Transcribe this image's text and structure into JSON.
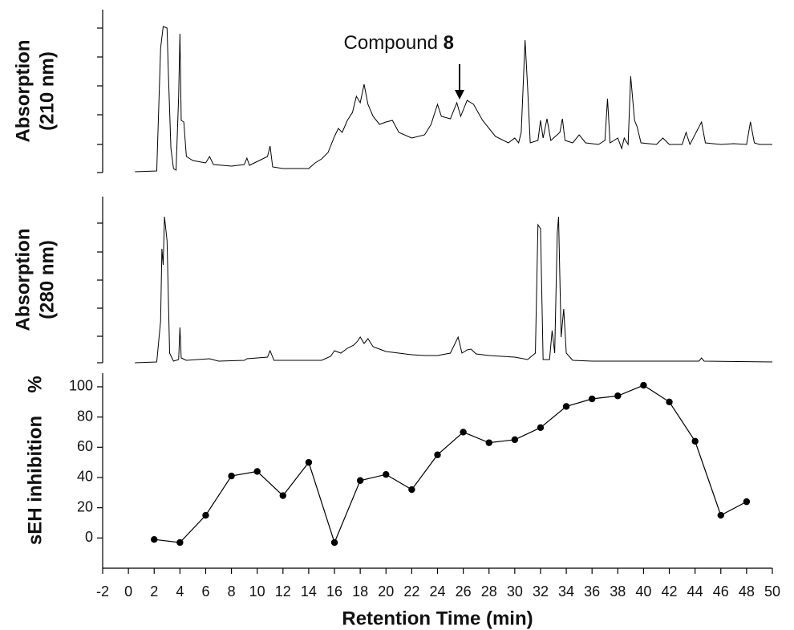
{
  "chart_data": [
    {
      "type": "line",
      "ylabel": [
        "Absorption",
        "(210 nm)"
      ],
      "color": "#000000",
      "xlim": [
        -2,
        50
      ],
      "ylim": [
        0,
        203
      ],
      "yticks": [
        0,
        35,
        72,
        108,
        144,
        180
      ],
      "annotation": {
        "text": "Compound",
        "bold": "8"
      },
      "x": [
        0.5,
        2.2,
        2.5,
        2.7,
        3.0,
        3.1,
        3.3,
        3.5,
        3.7,
        3.9,
        4.0,
        4.1,
        4.3,
        4.5,
        5,
        6,
        6.3,
        6.6,
        8,
        9,
        9.2,
        9.4,
        10.8,
        11,
        11.2,
        12,
        14,
        14.5,
        15,
        15.5,
        16,
        16.3,
        16.6,
        17,
        17.4,
        17.7,
        18,
        18.3,
        18.6,
        19,
        19.5,
        20,
        20.5,
        21,
        22,
        23,
        23.5,
        24,
        24.3,
        25,
        25.5,
        25.8,
        26.3,
        26.8,
        27.5,
        28.5,
        29.5,
        30,
        30.3,
        30.5,
        30.8,
        31,
        31.2,
        31.8,
        32,
        32.2,
        32.5,
        32.8,
        33.5,
        33.7,
        33.9,
        34.5,
        35,
        35.5,
        36.5,
        37,
        37.2,
        37.4,
        38,
        38.3,
        38.5,
        38.8,
        39,
        39.3,
        39.5,
        39.8,
        41,
        41.5,
        42,
        43,
        43.3,
        43.6,
        44.5,
        44.8,
        46,
        47,
        48,
        48.3,
        48.6,
        49,
        50
      ],
      "values": [
        1,
        2,
        155,
        182,
        180,
        125,
        30,
        5,
        3,
        95,
        173,
        65,
        63,
        20,
        15,
        12,
        20,
        10,
        8,
        10,
        18,
        9,
        20,
        33,
        7,
        5,
        5,
        12,
        17,
        25,
        45,
        55,
        50,
        65,
        75,
        95,
        87,
        110,
        85,
        70,
        60,
        63,
        65,
        50,
        43,
        47,
        60,
        85,
        70,
        67,
        87,
        70,
        90,
        85,
        65,
        45,
        37,
        43,
        37,
        50,
        165,
        105,
        37,
        40,
        65,
        43,
        67,
        40,
        50,
        67,
        40,
        37,
        47,
        37,
        35,
        40,
        92,
        37,
        43,
        30,
        43,
        35,
        120,
        65,
        57,
        37,
        35,
        43,
        35,
        35,
        50,
        35,
        63,
        37,
        35,
        36,
        35,
        63,
        37,
        35,
        35
      ]
    },
    {
      "type": "line",
      "ylabel": [
        "Absorption",
        "(280 nm)"
      ],
      "color": "#000000",
      "xlim": [
        -2,
        50
      ],
      "ylim": [
        0,
        207
      ],
      "yticks": [
        0,
        33,
        68,
        103,
        138,
        174
      ],
      "x": [
        0.5,
        2.2,
        2.5,
        2.6,
        2.7,
        2.8,
        3.0,
        3.2,
        3.5,
        3.9,
        4.0,
        4.1,
        4.5,
        6.3,
        7,
        9,
        9.2,
        10.8,
        11,
        11.3,
        15,
        15.7,
        16,
        16.5,
        17,
        17.5,
        17.8,
        18,
        18.3,
        18.6,
        19,
        19.5,
        20,
        21,
        22,
        23,
        24,
        25,
        25.6,
        25.9,
        26.3,
        26.6,
        27,
        28,
        30,
        31,
        31.6,
        31.8,
        32.0,
        32.2,
        32.7,
        32.9,
        33.1,
        33.3,
        33.4,
        33.6,
        33.8,
        34,
        34.5,
        36,
        44.3,
        44.5,
        44.7,
        50
      ],
      "values": [
        0,
        1,
        52,
        142,
        122,
        182,
        152,
        12,
        2,
        4,
        44,
        6,
        3,
        5,
        2,
        3,
        5,
        7,
        15,
        3,
        3,
        8,
        15,
        12,
        18,
        22,
        27,
        32,
        24,
        30,
        20,
        17,
        14,
        12,
        10,
        9,
        9,
        12,
        32,
        12,
        16,
        17,
        11,
        9,
        7,
        4,
        12,
        172,
        167,
        4,
        4,
        40,
        12,
        162,
        182,
        32,
        67,
        12,
        3,
        2,
        2,
        6,
        2,
        1
      ]
    },
    {
      "type": "line",
      "ylabel": [
        "sEH inhibition"
      ],
      "yunit": "%",
      "xlabel": "Retention Time (min)",
      "color": "#000000",
      "markers": true,
      "xlim": [
        -2,
        50
      ],
      "xticks": [
        -2,
        0,
        2,
        4,
        6,
        8,
        10,
        12,
        14,
        16,
        18,
        20,
        22,
        24,
        26,
        28,
        30,
        32,
        34,
        36,
        38,
        40,
        42,
        44,
        46,
        48,
        50
      ],
      "ylim": [
        -20,
        109
      ],
      "yticks": [
        0,
        20,
        40,
        60,
        80,
        100
      ],
      "x": [
        2,
        4,
        6,
        8,
        10,
        12,
        14,
        16,
        18,
        20,
        22,
        24,
        26,
        28,
        30,
        32,
        34,
        36,
        38,
        40,
        42,
        44,
        46,
        48
      ],
      "values": [
        -1,
        -3,
        15,
        41,
        44,
        28,
        50,
        -3,
        38,
        42,
        32,
        55,
        70,
        63,
        65,
        73,
        87,
        92,
        94,
        101,
        90,
        64,
        15,
        24
      ]
    }
  ]
}
